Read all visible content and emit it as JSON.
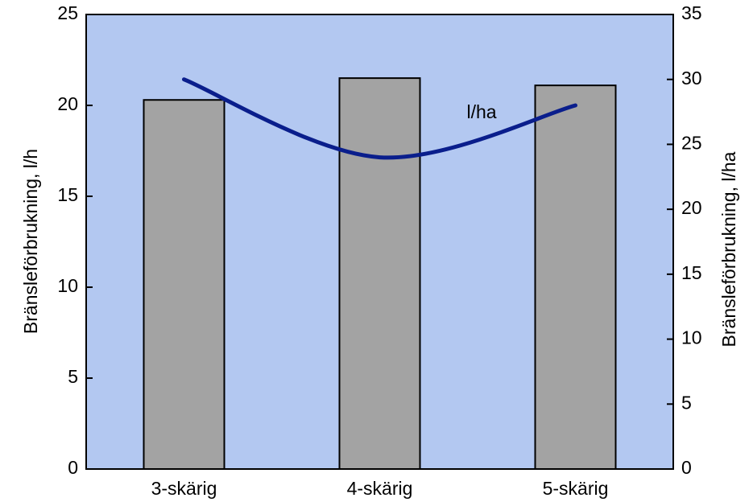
{
  "chart_data": {
    "type": "bar",
    "categories": [
      "3-skärig",
      "4-skärig",
      "5-skärig"
    ],
    "series": [
      {
        "name": "l/h",
        "type": "bar",
        "color": "#a3a3a3",
        "values": [
          20.3,
          21.5,
          21.1
        ]
      },
      {
        "name": "l/ha",
        "type": "line",
        "axis": "y2",
        "color": "#0a1e8c",
        "values": [
          30,
          24,
          28
        ]
      }
    ],
    "annotations": [
      {
        "text": "l/ha"
      }
    ],
    "y_label": "Bränsleförbrukning, l/h",
    "y2_label": "Bränsleförbrukning, l/ha",
    "ylim": [
      0,
      25
    ],
    "yticks": [
      0,
      5,
      10,
      15,
      20,
      25
    ],
    "y2lim": [
      0,
      35
    ],
    "y2ticks": [
      0,
      5,
      10,
      15,
      20,
      25,
      30,
      35
    ],
    "background": "#b3c8f1"
  }
}
